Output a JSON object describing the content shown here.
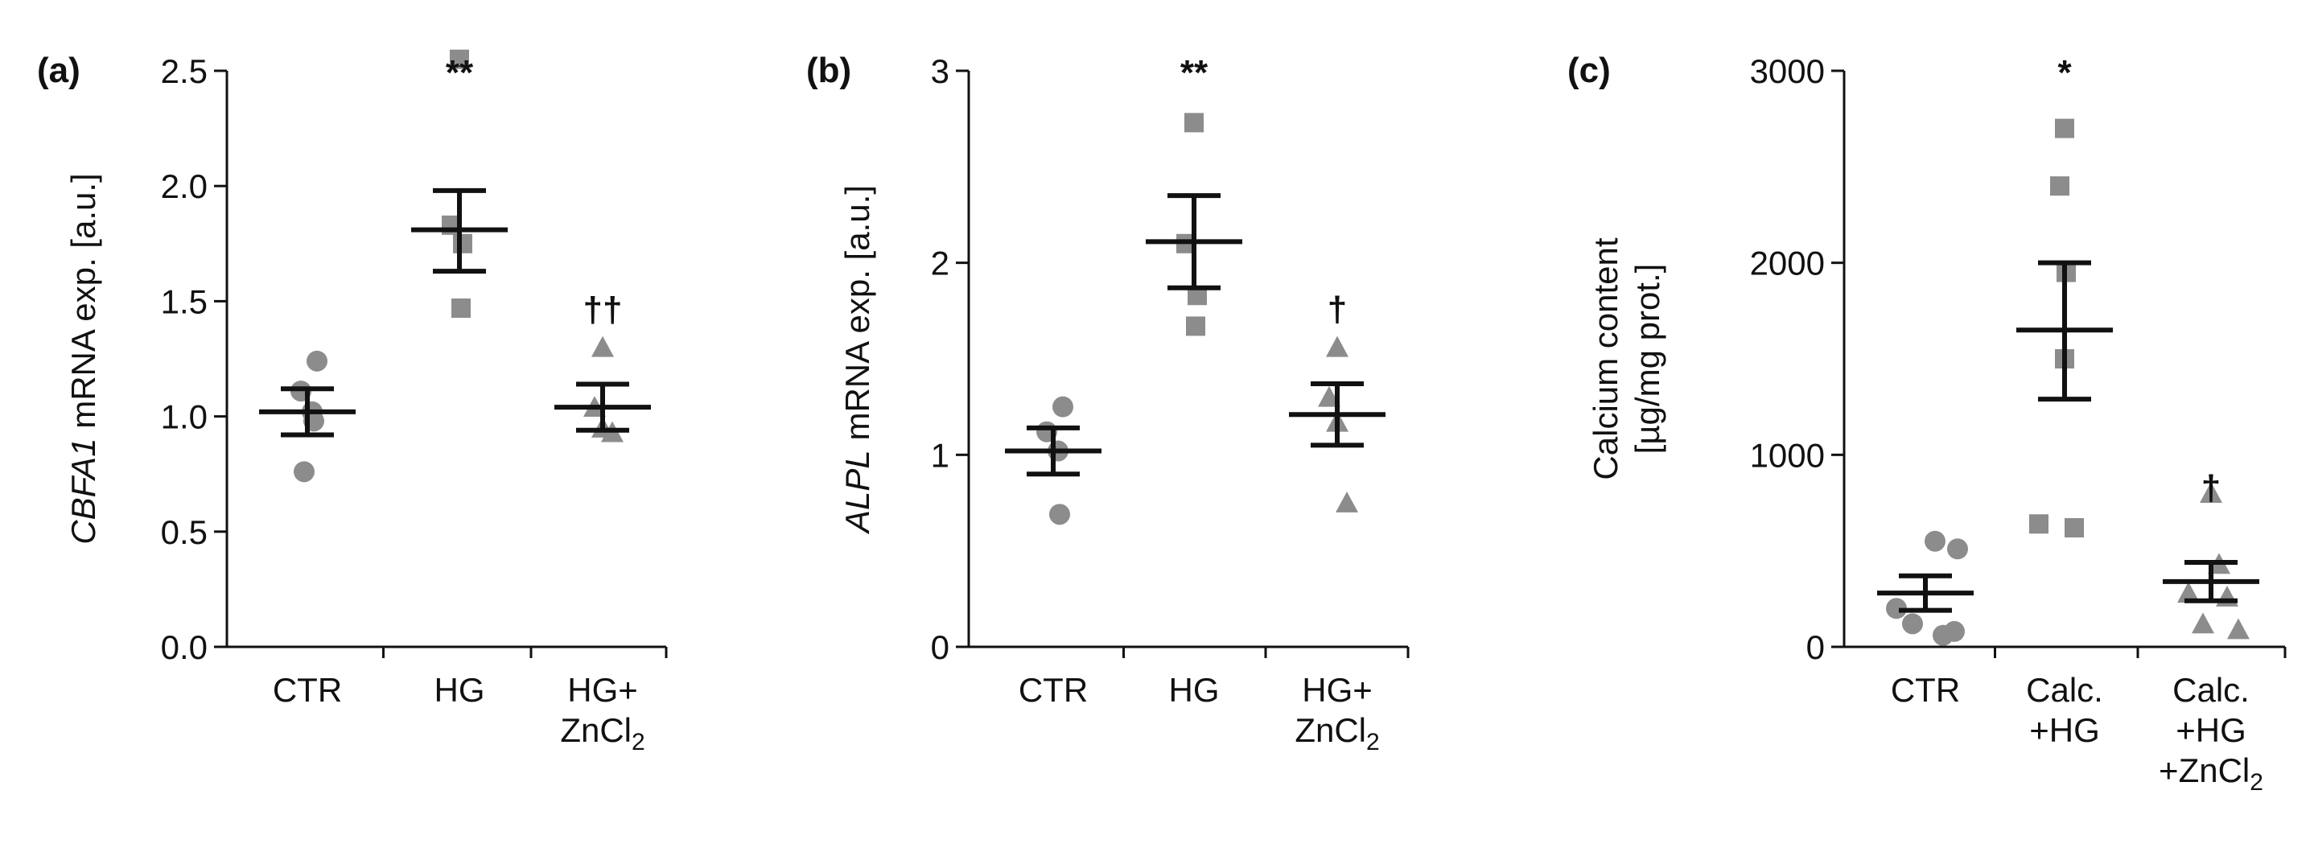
{
  "chart_data": [
    {
      "type": "scatter",
      "panel_label": "(a)",
      "ylabel_italic": "CBFA1",
      "ylabel_rest": " mRNA exp. [a.u.]",
      "ylim": [
        0,
        2.5
      ],
      "yticks": [
        "0.0",
        "0.5",
        "1.0",
        "1.5",
        "2.0",
        "2.5"
      ],
      "ytick_values": [
        0,
        0.5,
        1.0,
        1.5,
        2.0,
        2.5
      ],
      "categories": [
        [
          "CTR"
        ],
        [
          "HG"
        ],
        [
          "HG+",
          "ZnCl",
          "2"
        ]
      ],
      "groups": [
        {
          "marker": "circle",
          "points": [
            1.24,
            1.11,
            1.02,
            0.98,
            0.76
          ],
          "mean": 1.02,
          "sem_low": 0.92,
          "sem_high": 1.12,
          "sig": ""
        },
        {
          "marker": "square",
          "points": [
            2.55,
            1.83,
            1.75,
            1.47
          ],
          "mean": 1.81,
          "sem_low": 1.63,
          "sem_high": 1.98,
          "sig": "**"
        },
        {
          "marker": "triangle",
          "points": [
            1.3,
            1.04,
            0.95,
            0.93
          ],
          "mean": 1.04,
          "sem_low": 0.94,
          "sem_high": 1.14,
          "sig": "††"
        }
      ]
    },
    {
      "type": "scatter",
      "panel_label": "(b)",
      "ylabel_italic": "ALPL",
      "ylabel_rest": " mRNA exp. [a.u.]",
      "ylim": [
        0,
        3
      ],
      "yticks": [
        "0",
        "1",
        "2",
        "3"
      ],
      "ytick_values": [
        0,
        1,
        2,
        3
      ],
      "categories": [
        [
          "CTR"
        ],
        [
          "HG"
        ],
        [
          "HG+",
          "ZnCl",
          "2"
        ]
      ],
      "groups": [
        {
          "marker": "circle",
          "points": [
            1.25,
            1.12,
            1.02,
            0.69
          ],
          "mean": 1.02,
          "sem_low": 0.9,
          "sem_high": 1.14,
          "sig": ""
        },
        {
          "marker": "square",
          "points": [
            2.73,
            2.1,
            1.83,
            1.67
          ],
          "mean": 2.11,
          "sem_low": 1.87,
          "sem_high": 2.35,
          "sig": "**"
        },
        {
          "marker": "triangle",
          "points": [
            1.56,
            1.3,
            1.17,
            0.75
          ],
          "mean": 1.21,
          "sem_low": 1.05,
          "sem_high": 1.37,
          "sig": "†"
        }
      ]
    },
    {
      "type": "scatter",
      "panel_label": "(c)",
      "ylabel_line1": "Calcium content",
      "ylabel_line2": "[µg/mg prot.]",
      "ylim": [
        0,
        3000
      ],
      "yticks": [
        "0",
        "1000",
        "2000",
        "3000"
      ],
      "ytick_values": [
        0,
        1000,
        2000,
        3000
      ],
      "categories": [
        [
          "CTR"
        ],
        [
          "Calc.",
          "+HG"
        ],
        [
          "Calc.",
          "+HG",
          "+ZnCl",
          "2"
        ]
      ],
      "groups": [
        {
          "marker": "circle",
          "points": [
            550,
            510,
            200,
            120,
            80,
            60
          ],
          "mean": 280,
          "sem_low": 190,
          "sem_high": 370,
          "sig": ""
        },
        {
          "marker": "square",
          "points": [
            2700,
            2400,
            1950,
            1500,
            640,
            620
          ],
          "mean": 1650,
          "sem_low": 1290,
          "sem_high": 2000,
          "sig": "*"
        },
        {
          "marker": "triangle",
          "points": [
            800,
            430,
            280,
            260,
            120,
            90
          ],
          "mean": 340,
          "sem_low": 240,
          "sem_high": 440,
          "sig": "†"
        }
      ]
    }
  ],
  "style": {
    "marker_color": "#8c8c8c",
    "line_color": "#111111"
  }
}
